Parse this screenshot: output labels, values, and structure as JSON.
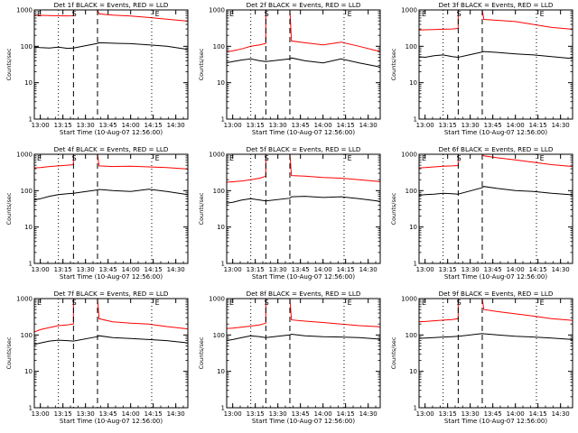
{
  "chart_data": [
    {
      "type": "line",
      "title": "Det 1f BLACK = Events, RED = LLD",
      "xlabel": "Start Time (10-Aug-07 12:56:00)",
      "ylabel": "Counts/sec",
      "ylog": true,
      "xlim": [
        12.9333,
        14.6333
      ],
      "ylim": [
        1,
        1000
      ],
      "x_ticks": [
        "13:00",
        "13:15",
        "13:30",
        "13:45",
        "14:00",
        "14:15",
        "14:30"
      ],
      "y_ticks": [
        "1",
        "10",
        "100",
        "1000"
      ],
      "markers": [
        {
          "x": 12.93,
          "label": "E"
        },
        {
          "x": 13.35,
          "label": "S"
        },
        {
          "x": 14.27,
          "label": "E"
        }
      ],
      "dashed_lines": [
        13.367,
        13.633
      ],
      "dotted_lines": [
        13.2,
        14.233
      ],
      "series": [
        {
          "color": "#ff0000",
          "x": [
            12.93,
            13.0,
            13.1,
            13.2,
            13.3,
            13.366,
            13.367,
            13.633,
            13.65,
            13.8,
            14.0,
            14.2,
            14.4,
            14.6,
            14.633
          ],
          "y": [
            720,
            710,
            700,
            690,
            685,
            690,
            1000,
            1000,
            780,
            720,
            680,
            620,
            560,
            500,
            490
          ]
        },
        {
          "color": "#000000",
          "x": [
            12.93,
            13.0,
            13.1,
            13.2,
            13.3,
            13.366,
            13.633,
            13.65,
            13.8,
            14.0,
            14.2,
            14.4,
            14.6,
            14.633
          ],
          "y": [
            95,
            92,
            90,
            95,
            88,
            90,
            120,
            125,
            122,
            118,
            110,
            100,
            85,
            80
          ]
        }
      ]
    },
    {
      "type": "line",
      "title": "Det 2f BLACK = Events, RED = LLD",
      "xlabel": "Start Time (10-Aug-07 12:56:00)",
      "ylabel": "Counts/sec",
      "ylog": true,
      "xlim": [
        12.9333,
        14.6333
      ],
      "ylim": [
        1,
        1000
      ],
      "x_ticks": [
        "13:00",
        "13:15",
        "13:30",
        "13:45",
        "14:00",
        "14:15",
        "14:30"
      ],
      "y_ticks": [
        "1",
        "10",
        "100",
        "1000"
      ],
      "markers": [
        {
          "x": 12.93,
          "label": "E"
        },
        {
          "x": 13.35,
          "label": "S"
        },
        {
          "x": 14.27,
          "label": "E"
        }
      ],
      "dashed_lines": [
        13.367,
        13.633
      ],
      "dotted_lines": [
        13.2,
        14.233
      ],
      "series": [
        {
          "color": "#ff0000",
          "x": [
            12.93,
            13.0,
            13.1,
            13.2,
            13.3,
            13.366,
            13.367,
            13.633,
            13.65,
            13.8,
            14.0,
            14.2,
            14.4,
            14.6,
            14.633
          ],
          "y": [
            70,
            75,
            85,
            100,
            110,
            120,
            1000,
            1000,
            140,
            125,
            110,
            130,
            100,
            75,
            70
          ]
        },
        {
          "color": "#000000",
          "x": [
            12.93,
            13.0,
            13.1,
            13.2,
            13.3,
            13.366,
            13.633,
            13.65,
            13.8,
            14.0,
            14.2,
            14.4,
            14.6,
            14.633
          ],
          "y": [
            35,
            38,
            42,
            45,
            40,
            38,
            45,
            48,
            40,
            35,
            45,
            35,
            28,
            26
          ]
        }
      ]
    },
    {
      "type": "line",
      "title": "Det 3f BLACK = Events, RED = LLD",
      "xlabel": "Start Time (10-Aug-07 12:56:00)",
      "ylabel": "Counts/sec",
      "ylog": true,
      "xlim": [
        12.9333,
        14.6333
      ],
      "ylim": [
        1,
        1000
      ],
      "x_ticks": [
        "13:00",
        "13:15",
        "13:30",
        "13:45",
        "14:00",
        "14:15",
        "14:30"
      ],
      "y_ticks": [
        "1",
        "10",
        "100",
        "1000"
      ],
      "markers": [
        {
          "x": 12.93,
          "label": "E"
        },
        {
          "x": 13.35,
          "label": "S"
        },
        {
          "x": 14.27,
          "label": "E"
        }
      ],
      "dashed_lines": [
        13.367,
        13.633
      ],
      "dotted_lines": [
        13.2,
        14.233
      ],
      "series": [
        {
          "color": "#ff0000",
          "x": [
            12.93,
            13.0,
            13.1,
            13.2,
            13.3,
            13.366,
            13.367,
            13.633,
            13.65,
            13.8,
            14.0,
            14.2,
            14.4,
            14.6,
            14.633
          ],
          "y": [
            280,
            285,
            290,
            295,
            300,
            310,
            1000,
            1000,
            550,
            520,
            480,
            400,
            330,
            300,
            290
          ]
        },
        {
          "color": "#000000",
          "x": [
            12.93,
            13.0,
            13.1,
            13.2,
            13.3,
            13.366,
            13.633,
            13.65,
            13.8,
            14.0,
            14.2,
            14.4,
            14.6,
            14.633
          ],
          "y": [
            52,
            50,
            55,
            58,
            52,
            50,
            70,
            72,
            68,
            62,
            58,
            52,
            47,
            46
          ]
        }
      ]
    },
    {
      "type": "line",
      "title": "Det 4f BLACK = Events, RED = LLD",
      "xlabel": "Start Time (10-Aug-07 12:56:00)",
      "ylabel": "Counts/sec",
      "ylog": true,
      "xlim": [
        12.9333,
        14.6333
      ],
      "ylim": [
        1,
        1000
      ],
      "x_ticks": [
        "13:00",
        "13:15",
        "13:30",
        "13:45",
        "14:00",
        "14:15",
        "14:30"
      ],
      "y_ticks": [
        "1",
        "10",
        "100",
        "1000"
      ],
      "markers": [
        {
          "x": 12.93,
          "label": "E"
        },
        {
          "x": 13.35,
          "label": "S"
        },
        {
          "x": 14.27,
          "label": "E"
        }
      ],
      "dashed_lines": [
        13.367,
        13.633
      ],
      "dotted_lines": [
        13.2,
        14.233
      ],
      "series": [
        {
          "color": "#ff0000",
          "x": [
            12.93,
            13.0,
            13.1,
            13.2,
            13.3,
            13.366,
            13.367,
            13.633,
            13.65,
            13.8,
            14.0,
            14.2,
            14.4,
            14.6,
            14.633
          ],
          "y": [
            420,
            430,
            460,
            480,
            500,
            520,
            1000,
            1000,
            480,
            460,
            470,
            450,
            430,
            400,
            390
          ]
        },
        {
          "color": "#000000",
          "x": [
            12.93,
            13.0,
            13.1,
            13.2,
            13.3,
            13.366,
            13.633,
            13.65,
            13.8,
            14.0,
            14.2,
            14.4,
            14.6,
            14.633
          ],
          "y": [
            55,
            60,
            70,
            78,
            82,
            85,
            105,
            108,
            100,
            95,
            110,
            95,
            80,
            78
          ]
        }
      ]
    },
    {
      "type": "line",
      "title": "Det 5f BLACK = Events, RED = LLD",
      "xlabel": "Start Time (10-Aug-07 12:56:00)",
      "ylabel": "Counts/sec",
      "ylog": true,
      "xlim": [
        12.9333,
        14.6333
      ],
      "ylim": [
        1,
        1000
      ],
      "x_ticks": [
        "13:00",
        "13:15",
        "13:30",
        "13:45",
        "14:00",
        "14:15",
        "14:30"
      ],
      "y_ticks": [
        "1",
        "10",
        "100",
        "1000"
      ],
      "markers": [
        {
          "x": 12.93,
          "label": "E"
        },
        {
          "x": 13.35,
          "label": "S"
        },
        {
          "x": 14.27,
          "label": "E"
        }
      ],
      "dashed_lines": [
        13.367,
        13.633
      ],
      "dotted_lines": [
        13.2,
        14.233
      ],
      "series": [
        {
          "color": "#ff0000",
          "x": [
            12.93,
            13.0,
            13.1,
            13.2,
            13.3,
            13.366,
            13.367,
            13.633,
            13.65,
            13.8,
            14.0,
            14.2,
            14.4,
            14.6,
            14.633
          ],
          "y": [
            170,
            175,
            185,
            200,
            220,
            250,
            1000,
            1000,
            260,
            250,
            230,
            220,
            200,
            180,
            175
          ]
        },
        {
          "color": "#000000",
          "x": [
            12.93,
            13.0,
            13.1,
            13.2,
            13.3,
            13.366,
            13.633,
            13.65,
            13.8,
            14.0,
            14.2,
            14.4,
            14.6,
            14.633
          ],
          "y": [
            45,
            48,
            55,
            60,
            55,
            52,
            62,
            68,
            70,
            65,
            68,
            60,
            52,
            50
          ]
        }
      ]
    },
    {
      "type": "line",
      "title": "Det 6f BLACK = Events, RED = LLD",
      "xlabel": "Start Time (10-Aug-07 12:56:00)",
      "ylabel": "Counts/sec",
      "ylog": true,
      "xlim": [
        12.9333,
        14.6333
      ],
      "ylim": [
        1,
        1000
      ],
      "x_ticks": [
        "13:00",
        "13:15",
        "13:30",
        "13:45",
        "14:00",
        "14:15",
        "14:30"
      ],
      "y_ticks": [
        "1",
        "10",
        "100",
        "1000"
      ],
      "markers": [
        {
          "x": 12.93,
          "label": "E"
        },
        {
          "x": 13.35,
          "label": "S"
        },
        {
          "x": 14.27,
          "label": "E"
        }
      ],
      "dashed_lines": [
        13.367,
        13.633
      ],
      "dotted_lines": [
        13.2,
        14.233
      ],
      "series": [
        {
          "color": "#ff0000",
          "x": [
            12.93,
            13.0,
            13.1,
            13.2,
            13.3,
            13.366,
            13.367,
            13.633,
            13.65,
            13.8,
            14.0,
            14.2,
            14.4,
            14.6,
            14.633
          ],
          "y": [
            420,
            430,
            450,
            470,
            480,
            490,
            1000,
            1000,
            900,
            800,
            700,
            600,
            520,
            470,
            460
          ]
        },
        {
          "color": "#000000",
          "x": [
            12.93,
            13.0,
            13.1,
            13.2,
            13.3,
            13.366,
            13.633,
            13.65,
            13.8,
            14.0,
            14.2,
            14.4,
            14.6,
            14.633
          ],
          "y": [
            75,
            78,
            80,
            85,
            82,
            80,
            120,
            130,
            115,
            100,
            95,
            85,
            78,
            76
          ]
        }
      ]
    },
    {
      "type": "line",
      "title": "Det 7f BLACK = Events, RED = LLD",
      "xlabel": "Start Time (10-Aug-07 12:56:00)",
      "ylabel": "Counts/sec",
      "ylog": true,
      "xlim": [
        12.9333,
        14.6333
      ],
      "ylim": [
        1,
        1000
      ],
      "x_ticks": [
        "13:00",
        "13:15",
        "13:30",
        "13:45",
        "14:00",
        "14:15",
        "14:30"
      ],
      "y_ticks": [
        "1",
        "10",
        "100",
        "1000"
      ],
      "markers": [
        {
          "x": 12.93,
          "label": "E"
        },
        {
          "x": 13.35,
          "label": "S"
        },
        {
          "x": 14.27,
          "label": "E"
        }
      ],
      "dashed_lines": [
        13.367,
        13.633
      ],
      "dotted_lines": [
        13.2,
        14.233
      ],
      "series": [
        {
          "color": "#ff0000",
          "x": [
            12.93,
            13.0,
            13.1,
            13.2,
            13.3,
            13.366,
            13.367,
            13.633,
            13.65,
            13.8,
            14.0,
            14.2,
            14.4,
            14.6,
            14.633
          ],
          "y": [
            120,
            140,
            160,
            180,
            190,
            200,
            1000,
            1000,
            280,
            230,
            210,
            200,
            170,
            150,
            145
          ]
        },
        {
          "color": "#000000",
          "x": [
            12.93,
            13.0,
            13.1,
            13.2,
            13.3,
            13.366,
            13.633,
            13.65,
            13.8,
            14.0,
            14.2,
            14.4,
            14.6,
            14.633
          ],
          "y": [
            55,
            60,
            68,
            72,
            70,
            68,
            90,
            95,
            85,
            80,
            75,
            70,
            62,
            60
          ]
        }
      ]
    },
    {
      "type": "line",
      "title": "Det 8f BLACK = Events, RED = LLD",
      "xlabel": "Start Time (10-Aug-07 12:56:00)",
      "ylabel": "Counts/sec",
      "ylog": true,
      "xlim": [
        12.9333,
        14.6333
      ],
      "ylim": [
        1,
        1000
      ],
      "x_ticks": [
        "13:00",
        "13:15",
        "13:30",
        "13:45",
        "14:00",
        "14:15",
        "14:30"
      ],
      "y_ticks": [
        "1",
        "10",
        "100",
        "1000"
      ],
      "markers": [
        {
          "x": 12.93,
          "label": "E"
        },
        {
          "x": 13.35,
          "label": "S"
        },
        {
          "x": 14.27,
          "label": "E"
        }
      ],
      "dashed_lines": [
        13.367,
        13.633
      ],
      "dotted_lines": [
        13.2,
        14.233
      ],
      "series": [
        {
          "color": "#ff0000",
          "x": [
            12.93,
            13.0,
            13.1,
            13.2,
            13.3,
            13.366,
            13.367,
            13.633,
            13.65,
            13.8,
            14.0,
            14.2,
            14.4,
            14.6,
            14.633
          ],
          "y": [
            150,
            155,
            165,
            175,
            190,
            210,
            1000,
            1000,
            260,
            240,
            220,
            200,
            180,
            170,
            165
          ]
        },
        {
          "color": "#000000",
          "x": [
            12.93,
            13.0,
            13.1,
            13.2,
            13.3,
            13.366,
            13.633,
            13.65,
            13.8,
            14.0,
            14.2,
            14.4,
            14.6,
            14.633
          ],
          "y": [
            70,
            75,
            85,
            95,
            90,
            85,
            100,
            105,
            95,
            90,
            88,
            85,
            78,
            75
          ]
        }
      ]
    },
    {
      "type": "line",
      "title": "Det 9f BLACK = Events, RED = LLD",
      "xlabel": "Start Time (10-Aug-07 12:56:00)",
      "ylabel": "Counts/sec",
      "ylog": true,
      "xlim": [
        12.9333,
        14.6333
      ],
      "ylim": [
        1,
        1000
      ],
      "x_ticks": [
        "13:00",
        "13:15",
        "13:30",
        "13:45",
        "14:00",
        "14:15",
        "14:30"
      ],
      "y_ticks": [
        "1",
        "10",
        "100",
        "1000"
      ],
      "markers": [
        {
          "x": 12.93,
          "label": "E"
        },
        {
          "x": 13.35,
          "label": "S"
        },
        {
          "x": 14.27,
          "label": "E"
        }
      ],
      "dashed_lines": [
        13.367,
        13.633
      ],
      "dotted_lines": [
        13.2,
        14.233
      ],
      "series": [
        {
          "color": "#ff0000",
          "x": [
            12.93,
            13.0,
            13.1,
            13.2,
            13.3,
            13.366,
            13.367,
            13.633,
            13.65,
            13.8,
            14.0,
            14.2,
            14.4,
            14.6,
            14.633
          ],
          "y": [
            230,
            235,
            245,
            255,
            265,
            280,
            1000,
            1000,
            500,
            440,
            380,
            330,
            280,
            255,
            250
          ]
        },
        {
          "color": "#000000",
          "x": [
            12.93,
            13.0,
            13.1,
            13.2,
            13.3,
            13.366,
            13.633,
            13.65,
            13.8,
            14.0,
            14.2,
            14.4,
            14.6,
            14.633
          ],
          "y": [
            80,
            82,
            85,
            88,
            90,
            92,
            110,
            108,
            100,
            92,
            88,
            82,
            76,
            75
          ]
        }
      ]
    }
  ]
}
